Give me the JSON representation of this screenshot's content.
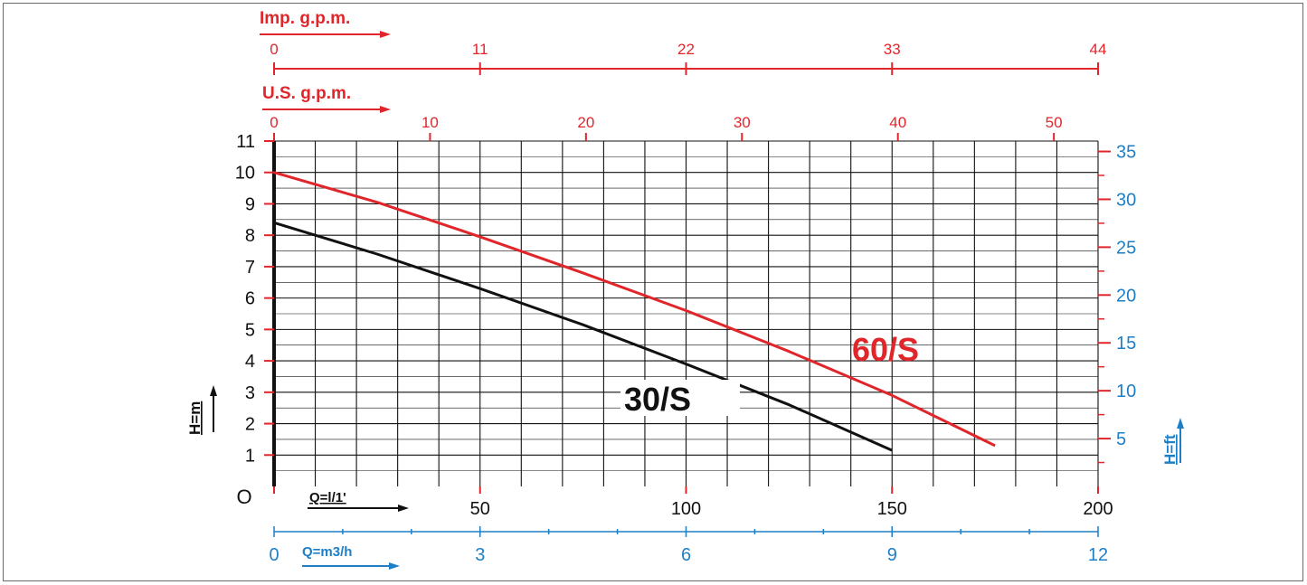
{
  "colors": {
    "red": "#e0262b",
    "blue": "#1e7fc6",
    "black": "#111111",
    "grid": "#111111"
  },
  "chart_data": {
    "type": "line",
    "grid": true,
    "x_axis_main": {
      "label": "Q=l/1'",
      "range": [
        0,
        200
      ],
      "ticks": [
        "O",
        "50",
        "100",
        "150",
        "200"
      ],
      "tick_values": [
        0,
        50,
        100,
        150,
        200
      ]
    },
    "x_axis_m3h": {
      "label": "Q=m3/h",
      "ticks": [
        "0",
        "3",
        "6",
        "9",
        "12"
      ],
      "tick_values": [
        0,
        3,
        6,
        9,
        12
      ]
    },
    "x_axis_us_gpm": {
      "label": "U.S. g.p.m.",
      "ticks": [
        "0",
        "10",
        "20",
        "30",
        "40",
        "50"
      ],
      "tick_values": [
        0,
        10,
        20,
        30,
        40,
        50
      ]
    },
    "x_axis_imp_gpm": {
      "label": "Imp. g.p.m.",
      "ticks": [
        "0",
        "11",
        "22",
        "33",
        "44"
      ],
      "tick_values": [
        0,
        11,
        22,
        33,
        44
      ]
    },
    "y_axis_m": {
      "label": "H=m",
      "range": [
        0,
        11
      ],
      "ticks": [
        "1",
        "2",
        "3",
        "4",
        "5",
        "6",
        "7",
        "8",
        "9",
        "10",
        "11"
      ],
      "tick_values": [
        1,
        2,
        3,
        4,
        5,
        6,
        7,
        8,
        9,
        10,
        11
      ]
    },
    "y_axis_ft": {
      "label": "H=ft",
      "ticks": [
        "5",
        "10",
        "15",
        "20",
        "25",
        "30",
        "35"
      ],
      "tick_values": [
        5,
        10,
        15,
        20,
        25,
        30,
        35
      ]
    },
    "series": [
      {
        "name": "60/S",
        "color": "#e0262b",
        "x": [
          0,
          25,
          50,
          75,
          100,
          125,
          150,
          175
        ],
        "y": [
          10.0,
          9.05,
          7.95,
          6.8,
          5.6,
          4.3,
          2.9,
          1.3
        ]
      },
      {
        "name": "30/S",
        "color": "#111111",
        "x": [
          0,
          25,
          50,
          75,
          100,
          125,
          150
        ],
        "y": [
          8.4,
          7.4,
          6.3,
          5.15,
          3.9,
          2.6,
          1.15
        ]
      }
    ]
  }
}
